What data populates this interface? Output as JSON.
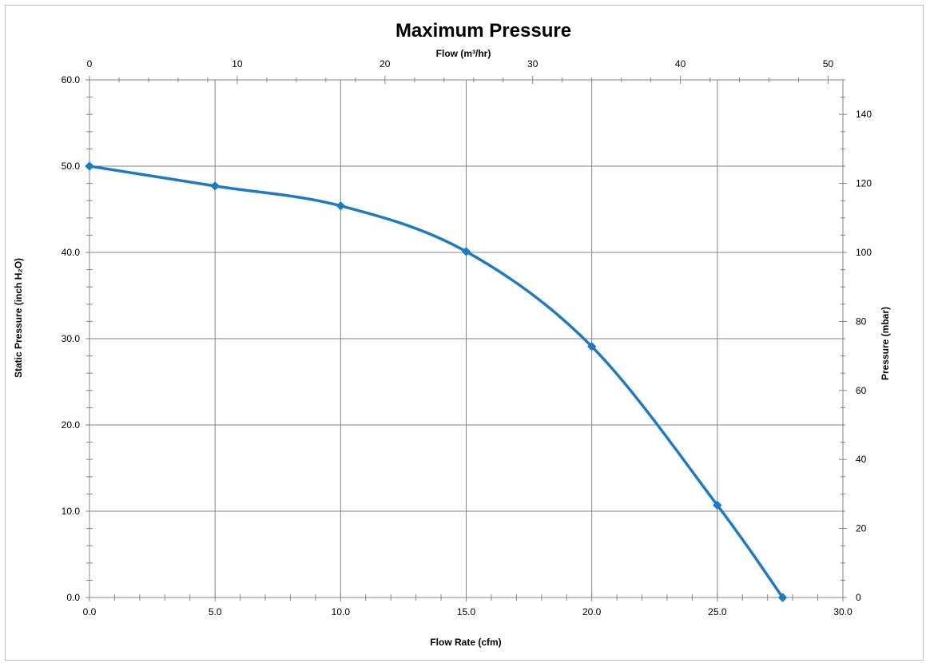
{
  "chart_data": {
    "type": "line",
    "title": "Maximum Pressure",
    "xlabel": "Flow Rate (cfm)",
    "ylabel": "Static Pressure (inch H₂O)",
    "x2label": "Flow (m³/hr)",
    "y2label": "Pressure (mbar)",
    "xlim": [
      0,
      30
    ],
    "ylim": [
      0,
      60
    ],
    "x2lim": [
      0,
      51
    ],
    "y2lim": [
      0,
      150
    ],
    "x_ticks": [
      "0.0",
      "5.0",
      "10.0",
      "15.0",
      "20.0",
      "25.0",
      "30.0"
    ],
    "y_ticks": [
      "0.0",
      "10.0",
      "20.0",
      "30.0",
      "40.0",
      "50.0",
      "60.0"
    ],
    "x2_ticks": [
      "0",
      "10",
      "20",
      "30",
      "40",
      "50"
    ],
    "y2_ticks": [
      "0",
      "20",
      "40",
      "60",
      "80",
      "100",
      "120",
      "140"
    ],
    "grid": true,
    "series": [
      {
        "x": [
          0,
          5,
          10,
          15,
          20,
          25,
          27.6
        ],
        "values": [
          50.0,
          47.7,
          45.4,
          40.1,
          29.1,
          10.7,
          0.0
        ],
        "color": "#1f7bc1",
        "marker": "diamond"
      }
    ]
  }
}
